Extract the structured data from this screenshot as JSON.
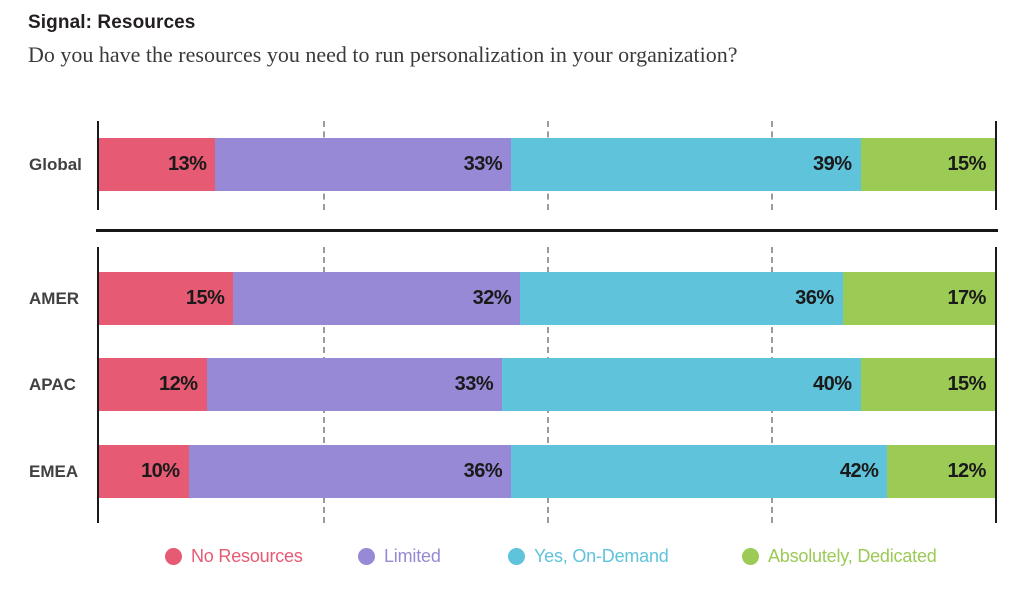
{
  "header": {
    "title": "Signal: Resources",
    "subtitle": "Do you have the resources you need to run personalization in your organization?"
  },
  "chart_data": {
    "type": "bar",
    "orientation": "horizontal",
    "stacked": true,
    "value_unit": "%",
    "xlim": [
      0,
      100
    ],
    "grid": true,
    "gridlines_percent": [
      25,
      50,
      75
    ],
    "legend_position": "bottom",
    "categories": [
      "Global",
      "AMER",
      "APAC",
      "EMEA"
    ],
    "row_groups": [
      [
        0
      ],
      [
        1,
        2,
        3
      ]
    ],
    "series": [
      {
        "name": "No Resources",
        "color": "#E75A73",
        "values": [
          13,
          15,
          12,
          10
        ]
      },
      {
        "name": "Limited",
        "color": "#9789D5",
        "values": [
          33,
          32,
          33,
          36
        ]
      },
      {
        "name": "Yes, On-Demand",
        "color": "#5FC3DB",
        "values": [
          39,
          36,
          40,
          42
        ]
      },
      {
        "name": "Absolutely, Dedicated",
        "color": "#9BCA55",
        "values": [
          15,
          17,
          15,
          12
        ]
      }
    ]
  },
  "style": {
    "axis_color": "#1a1a1a",
    "gridline_color": "#9b9b9b",
    "category_label_color": "#414042",
    "value_label_color": "#1a1a1a"
  }
}
